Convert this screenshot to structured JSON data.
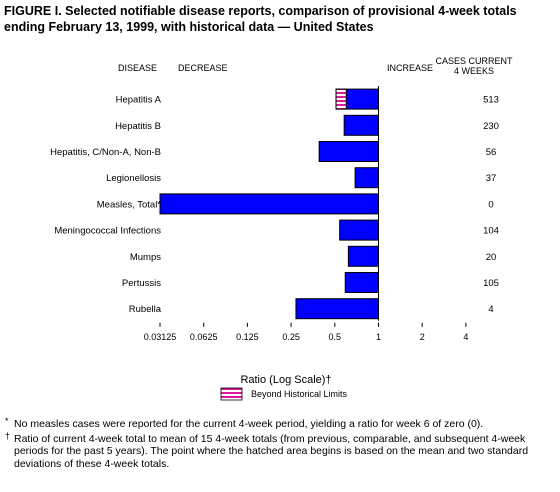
{
  "figure": {
    "title": "FIGURE I. Selected notifiable disease reports, comparison of provisional 4-week totals ending February 13, 1999, with historical data — United States"
  },
  "headers": {
    "disease": "DISEASE",
    "decrease": "DECREASE",
    "increase": "INCREASE",
    "cases_line1": "CASES CURRENT",
    "cases_line2": "4 WEEKS"
  },
  "chart_data": {
    "type": "bar",
    "orientation": "horizontal",
    "x_scale": "log2",
    "xlim": [
      0.03125,
      4
    ],
    "xlabel": "Ratio (Log Scale)†",
    "x_ticks": [
      "0.03125",
      "0.0625",
      "0.125",
      "0.25",
      "0.5",
      "1",
      "2",
      "4"
    ],
    "x_tick_values": [
      0.03125,
      0.0625,
      0.125,
      0.25,
      0.5,
      1,
      2,
      4
    ],
    "baseline": 1,
    "categories": [
      "Hepatitis A",
      "Hepatitis B",
      "Hepatitis, C/Non-A, Non-B",
      "Legionellosis",
      "Measles, Total*",
      "Meningococcal Infections",
      "Mumps",
      "Pertussis",
      "Rubella"
    ],
    "values": [
      0.51,
      0.58,
      0.39,
      0.69,
      0.03125,
      0.54,
      0.62,
      0.59,
      0.27
    ],
    "beyond_limits": [
      0.6,
      null,
      null,
      null,
      null,
      null,
      null,
      null,
      null
    ],
    "cases_current_4_weeks": [
      "513",
      "230",
      "56",
      "37",
      "0",
      "104",
      "20",
      "105",
      "4"
    ],
    "bar_color": "#0000ff",
    "hatch_color": "#e0199a",
    "legend": {
      "label": "Beyond Historical Limits",
      "placement": "bottom-center"
    }
  },
  "footnotes": [
    {
      "mark": "*",
      "text": "No measles cases were reported for the current 4-week period, yielding a ratio for week 6 of zero (0)."
    },
    {
      "mark": "†",
      "text": "Ratio of current 4-week total to mean of 15 4-week totals (from previous, comparable, and subsequent 4-week periods for the past 5 years). The point where the hatched area begins is based on the mean and two standard deviations of these 4-week totals."
    }
  ]
}
